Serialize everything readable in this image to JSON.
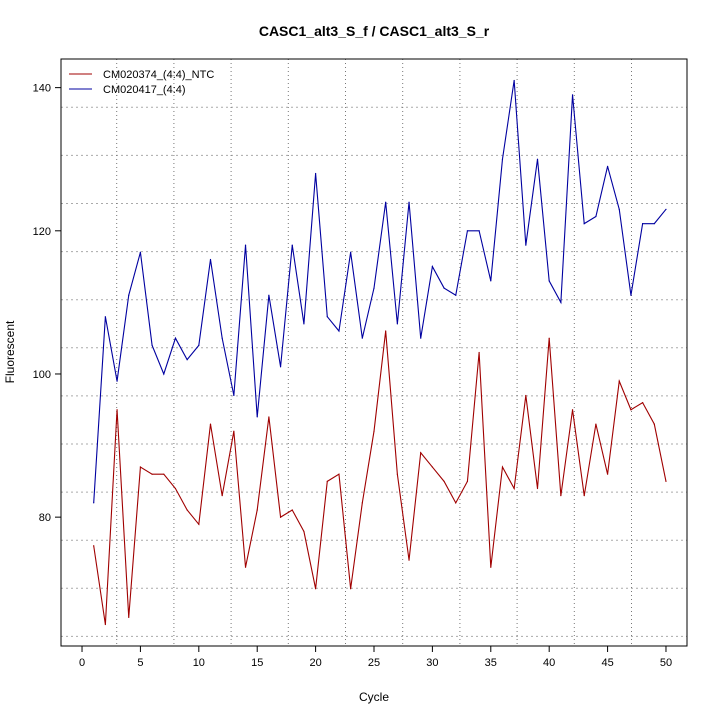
{
  "chart_data": {
    "type": "line",
    "title": "CASC1_alt3_S_f / CASC1_alt3_S_r",
    "xlabel": "Cycle",
    "ylabel": "Fluorescent",
    "xlim": [
      -1.8,
      51.8
    ],
    "ylim": [
      62,
      144
    ],
    "xticks": [
      0,
      5,
      10,
      15,
      20,
      25,
      30,
      35,
      40,
      45,
      50
    ],
    "yticks": [
      80,
      100,
      120,
      140
    ],
    "grid": true,
    "legend_position": "top-left",
    "x": [
      1,
      2,
      3,
      4,
      5,
      6,
      7,
      8,
      9,
      10,
      11,
      12,
      13,
      14,
      15,
      16,
      17,
      18,
      19,
      20,
      21,
      22,
      23,
      24,
      25,
      26,
      27,
      28,
      29,
      30,
      31,
      32,
      33,
      34,
      35,
      36,
      37,
      38,
      39,
      40,
      41,
      42,
      43,
      44,
      45,
      46,
      47,
      48,
      49,
      50
    ],
    "series": [
      {
        "name": "CM020374_(4:4)_NTC",
        "color": "#a00000",
        "values": [
          76,
          65,
          95,
          66,
          87,
          86,
          86,
          84,
          81,
          79,
          93,
          83,
          92,
          73,
          81,
          94,
          80,
          81,
          78,
          70,
          85,
          86,
          70,
          82,
          92,
          106,
          86,
          74,
          89,
          87,
          85,
          82,
          85,
          103,
          73,
          87,
          84,
          97,
          84,
          105,
          83,
          95,
          83,
          93,
          86,
          99,
          95,
          96,
          93,
          85
        ]
      },
      {
        "name": "CM020417_(4:4)",
        "color": "#0000a0",
        "values": [
          82,
          108,
          99,
          111,
          117,
          104,
          100,
          105,
          102,
          104,
          116,
          105,
          97,
          118,
          94,
          111,
          101,
          118,
          107,
          128,
          108,
          106,
          117,
          105,
          112,
          124,
          107,
          124,
          105,
          115,
          112,
          111,
          120,
          120,
          113,
          130,
          141,
          118,
          130,
          113,
          110,
          139,
          121,
          122,
          129,
          123,
          111,
          121,
          121,
          123
        ]
      }
    ]
  }
}
